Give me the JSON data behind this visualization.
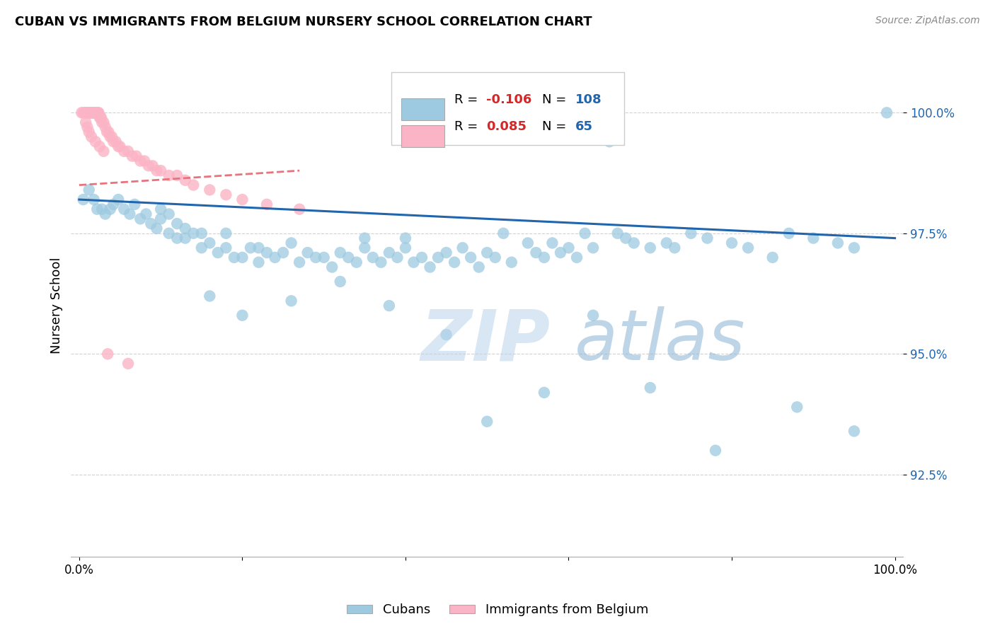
{
  "title": "CUBAN VS IMMIGRANTS FROM BELGIUM NURSERY SCHOOL CORRELATION CHART",
  "source": "Source: ZipAtlas.com",
  "ylabel": "Nursery School",
  "ytick_labels": [
    "100.0%",
    "97.5%",
    "95.0%",
    "92.5%"
  ],
  "ytick_values": [
    1.0,
    0.975,
    0.95,
    0.925
  ],
  "xlim": [
    -0.01,
    1.01
  ],
  "ylim": [
    0.908,
    1.012
  ],
  "blue_color": "#9ecae1",
  "pink_color": "#fbb4c5",
  "blue_line_color": "#2166ac",
  "pink_line_color": "#e8737d",
  "blue_label": "Cubans",
  "pink_label": "Immigrants from Belgium",
  "R_blue": -0.106,
  "N_blue": 108,
  "R_pink": 0.085,
  "N_pink": 65,
  "watermark_zip": "ZIP",
  "watermark_atlas": "atlas",
  "watermark_color": "#c6dbef",
  "blue_x": [
    0.005,
    0.012,
    0.018,
    0.022,
    0.028,
    0.032,
    0.038,
    0.042,
    0.048,
    0.055,
    0.062,
    0.068,
    0.075,
    0.082,
    0.088,
    0.095,
    0.1,
    0.1,
    0.11,
    0.11,
    0.12,
    0.12,
    0.13,
    0.13,
    0.14,
    0.15,
    0.15,
    0.16,
    0.17,
    0.18,
    0.18,
    0.19,
    0.2,
    0.21,
    0.22,
    0.22,
    0.23,
    0.24,
    0.25,
    0.26,
    0.27,
    0.28,
    0.29,
    0.3,
    0.31,
    0.32,
    0.33,
    0.34,
    0.35,
    0.35,
    0.36,
    0.37,
    0.38,
    0.39,
    0.4,
    0.4,
    0.41,
    0.42,
    0.43,
    0.44,
    0.45,
    0.46,
    0.47,
    0.48,
    0.49,
    0.5,
    0.51,
    0.52,
    0.53,
    0.55,
    0.56,
    0.57,
    0.58,
    0.59,
    0.6,
    0.61,
    0.62,
    0.63,
    0.65,
    0.66,
    0.67,
    0.68,
    0.7,
    0.72,
    0.73,
    0.75,
    0.77,
    0.8,
    0.82,
    0.85,
    0.87,
    0.9,
    0.93,
    0.95,
    0.99,
    0.16,
    0.2,
    0.26,
    0.32,
    0.38,
    0.45,
    0.5,
    0.57,
    0.63,
    0.7,
    0.78,
    0.88,
    0.95
  ],
  "blue_y": [
    0.982,
    0.984,
    0.982,
    0.98,
    0.98,
    0.979,
    0.98,
    0.981,
    0.982,
    0.98,
    0.979,
    0.981,
    0.978,
    0.979,
    0.977,
    0.976,
    0.978,
    0.98,
    0.975,
    0.979,
    0.974,
    0.977,
    0.974,
    0.976,
    0.975,
    0.972,
    0.975,
    0.973,
    0.971,
    0.972,
    0.975,
    0.97,
    0.97,
    0.972,
    0.969,
    0.972,
    0.971,
    0.97,
    0.971,
    0.973,
    0.969,
    0.971,
    0.97,
    0.97,
    0.968,
    0.971,
    0.97,
    0.969,
    0.972,
    0.974,
    0.97,
    0.969,
    0.971,
    0.97,
    0.972,
    0.974,
    0.969,
    0.97,
    0.968,
    0.97,
    0.971,
    0.969,
    0.972,
    0.97,
    0.968,
    0.971,
    0.97,
    0.975,
    0.969,
    0.973,
    0.971,
    0.97,
    0.973,
    0.971,
    0.972,
    0.97,
    0.975,
    0.972,
    0.994,
    0.975,
    0.974,
    0.973,
    0.972,
    0.973,
    0.972,
    0.975,
    0.974,
    0.973,
    0.972,
    0.97,
    0.975,
    0.974,
    0.973,
    0.972,
    1.0,
    0.962,
    0.958,
    0.961,
    0.965,
    0.96,
    0.954,
    0.936,
    0.942,
    0.958,
    0.943,
    0.93,
    0.939,
    0.934
  ],
  "pink_x": [
    0.003,
    0.005,
    0.007,
    0.008,
    0.01,
    0.01,
    0.011,
    0.012,
    0.013,
    0.014,
    0.015,
    0.015,
    0.016,
    0.017,
    0.018,
    0.018,
    0.019,
    0.02,
    0.02,
    0.021,
    0.022,
    0.023,
    0.024,
    0.025,
    0.026,
    0.027,
    0.028,
    0.03,
    0.032,
    0.034,
    0.036,
    0.038,
    0.04,
    0.042,
    0.045,
    0.048,
    0.05,
    0.055,
    0.06,
    0.065,
    0.07,
    0.075,
    0.08,
    0.085,
    0.09,
    0.095,
    0.1,
    0.11,
    0.12,
    0.13,
    0.14,
    0.16,
    0.18,
    0.2,
    0.23,
    0.27,
    0.008,
    0.01,
    0.012,
    0.015,
    0.02,
    0.025,
    0.03,
    0.035,
    0.06
  ],
  "pink_y": [
    1.0,
    1.0,
    1.0,
    1.0,
    1.0,
    1.0,
    1.0,
    1.0,
    1.0,
    1.0,
    1.0,
    1.0,
    1.0,
    1.0,
    1.0,
    1.0,
    1.0,
    1.0,
    1.0,
    1.0,
    1.0,
    1.0,
    1.0,
    0.999,
    0.999,
    0.999,
    0.998,
    0.998,
    0.997,
    0.996,
    0.996,
    0.995,
    0.995,
    0.994,
    0.994,
    0.993,
    0.993,
    0.992,
    0.992,
    0.991,
    0.991,
    0.99,
    0.99,
    0.989,
    0.989,
    0.988,
    0.988,
    0.987,
    0.987,
    0.986,
    0.985,
    0.984,
    0.983,
    0.982,
    0.981,
    0.98,
    0.998,
    0.997,
    0.996,
    0.995,
    0.994,
    0.993,
    0.992,
    0.95,
    0.948
  ],
  "blue_trend_x": [
    0.0,
    1.0
  ],
  "blue_trend_y": [
    0.982,
    0.974
  ],
  "pink_trend_x": [
    0.0,
    0.27
  ],
  "pink_trend_y": [
    0.985,
    0.988
  ]
}
